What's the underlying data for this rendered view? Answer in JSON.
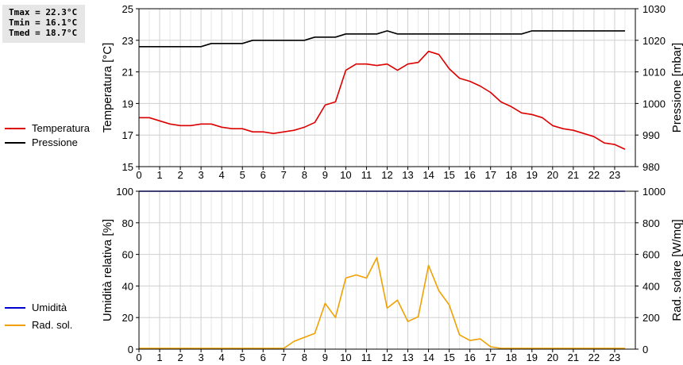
{
  "stats": {
    "tmax": "Tmax = 22.3°C",
    "tmin": "Tmin = 16.1°C",
    "tmed": "Tmed = 18.7°C"
  },
  "legend_top": [
    {
      "label": "Temperatura",
      "color": "#dd0000"
    },
    {
      "label": "Pressione",
      "color": "#000000"
    }
  ],
  "legend_bottom": [
    {
      "label": "Umidità",
      "color": "#0000cc"
    },
    {
      "label": "Rad. sol.",
      "color": "#f0a000"
    }
  ],
  "chart_data": [
    {
      "type": "line",
      "xlim": [
        0,
        24
      ],
      "x_ticks": [
        "0",
        "1",
        "2",
        "3",
        "4",
        "5",
        "6",
        "7",
        "8",
        "9",
        "10",
        "11",
        "12",
        "13",
        "14",
        "15",
        "16",
        "17",
        "18",
        "19",
        "20",
        "21",
        "22",
        "23"
      ],
      "ylabel": "Temperatura [°C]",
      "ylim": [
        15,
        25
      ],
      "y_ticks": [
        "15",
        "17",
        "19",
        "21",
        "23",
        "25"
      ],
      "y2label": "Pressione [mbar]",
      "y2lim": [
        980,
        1030
      ],
      "y2_ticks": [
        "980",
        "990",
        "1000",
        "1010",
        "1020",
        "1030"
      ],
      "grid": true,
      "series": [
        {
          "name": "Temperatura",
          "axis": "left",
          "color": "#dd0000",
          "x": [
            0,
            0.5,
            1,
            1.5,
            2,
            2.5,
            3,
            3.5,
            4,
            4.5,
            5,
            5.5,
            6,
            6.5,
            7,
            7.5,
            8,
            8.5,
            9,
            9.5,
            10,
            10.5,
            11,
            11.5,
            12,
            12.5,
            13,
            13.5,
            14,
            14.5,
            15,
            15.5,
            16,
            16.5,
            17,
            17.5,
            18,
            18.5,
            19,
            19.5,
            20,
            20.5,
            21,
            21.5,
            22,
            22.5,
            23,
            23.5
          ],
          "y": [
            18.1,
            18.1,
            17.9,
            17.7,
            17.6,
            17.6,
            17.7,
            17.7,
            17.5,
            17.4,
            17.4,
            17.2,
            17.2,
            17.1,
            17.2,
            17.3,
            17.5,
            17.8,
            18.9,
            19.1,
            21.1,
            21.5,
            21.5,
            21.4,
            21.5,
            21.1,
            21.5,
            21.6,
            22.3,
            22.1,
            21.2,
            20.6,
            20.4,
            20.1,
            19.7,
            19.1,
            18.8,
            18.4,
            18.3,
            18.1,
            17.6,
            17.4,
            17.3,
            17.1,
            16.9,
            16.5,
            16.4,
            16.1
          ]
        },
        {
          "name": "Pressione",
          "axis": "right",
          "color": "#000000",
          "x": [
            0,
            3,
            3.5,
            5,
            5.5,
            7,
            7.5,
            8,
            8.5,
            9,
            9.5,
            10,
            10.5,
            11,
            11.5,
            12,
            12.5,
            13,
            13.5,
            14,
            14.5,
            15,
            15.5,
            16,
            16.5,
            17,
            17.5,
            18,
            18.5,
            19,
            19.5,
            20,
            20.5,
            21,
            21.5,
            22,
            22.5,
            23,
            23.5
          ],
          "y": [
            1018,
            1018,
            1019,
            1019,
            1020,
            1020,
            1020,
            1020,
            1021,
            1021,
            1021,
            1022,
            1022,
            1022,
            1022,
            1023,
            1022,
            1022,
            1022,
            1022,
            1022,
            1022,
            1022,
            1022,
            1022,
            1022,
            1022,
            1022,
            1022,
            1023,
            1023,
            1023,
            1023,
            1023,
            1023,
            1023,
            1023,
            1023,
            1023
          ]
        }
      ]
    },
    {
      "type": "line",
      "xlim": [
        0,
        24
      ],
      "x_ticks": [
        "0",
        "1",
        "2",
        "3",
        "4",
        "5",
        "6",
        "7",
        "8",
        "9",
        "10",
        "11",
        "12",
        "13",
        "14",
        "15",
        "16",
        "17",
        "18",
        "19",
        "20",
        "21",
        "22",
        "23"
      ],
      "ylabel": "Umidità relativa [%]",
      "ylim": [
        0,
        100
      ],
      "y_ticks": [
        "0",
        "20",
        "40",
        "60",
        "80",
        "100"
      ],
      "y2label": "Rad. solare [W/mq]",
      "y2lim": [
        0,
        1000
      ],
      "y2_ticks": [
        "0",
        "200",
        "400",
        "600",
        "800",
        "1000"
      ],
      "grid": true,
      "series": [
        {
          "name": "Umidità",
          "axis": "left",
          "color": "#0000cc",
          "x": [
            0,
            23.5
          ],
          "y": [
            100,
            100
          ]
        },
        {
          "name": "Rad. sol.",
          "axis": "right",
          "color": "#f0a000",
          "x": [
            0,
            0.5,
            1,
            1.5,
            2,
            2.5,
            3,
            3.5,
            4,
            4.5,
            5,
            5.5,
            6,
            6.5,
            7,
            7.5,
            8,
            8.5,
            9,
            9.5,
            10,
            10.5,
            11,
            11.5,
            12,
            12.5,
            13,
            13.5,
            14,
            14.5,
            15,
            15.5,
            16,
            16.5,
            17,
            17.5,
            18,
            18.5,
            19,
            19.5,
            20,
            20.5,
            21,
            21.5,
            22,
            22.5,
            23,
            23.5
          ],
          "y": [
            5,
            5,
            5,
            5,
            5,
            5,
            5,
            5,
            5,
            5,
            5,
            5,
            5,
            5,
            5,
            50,
            75,
            100,
            290,
            200,
            450,
            470,
            450,
            580,
            260,
            310,
            175,
            205,
            530,
            370,
            280,
            90,
            55,
            65,
            15,
            5,
            5,
            5,
            5,
            5,
            5,
            5,
            5,
            5,
            5,
            5,
            5,
            5
          ]
        }
      ]
    }
  ]
}
